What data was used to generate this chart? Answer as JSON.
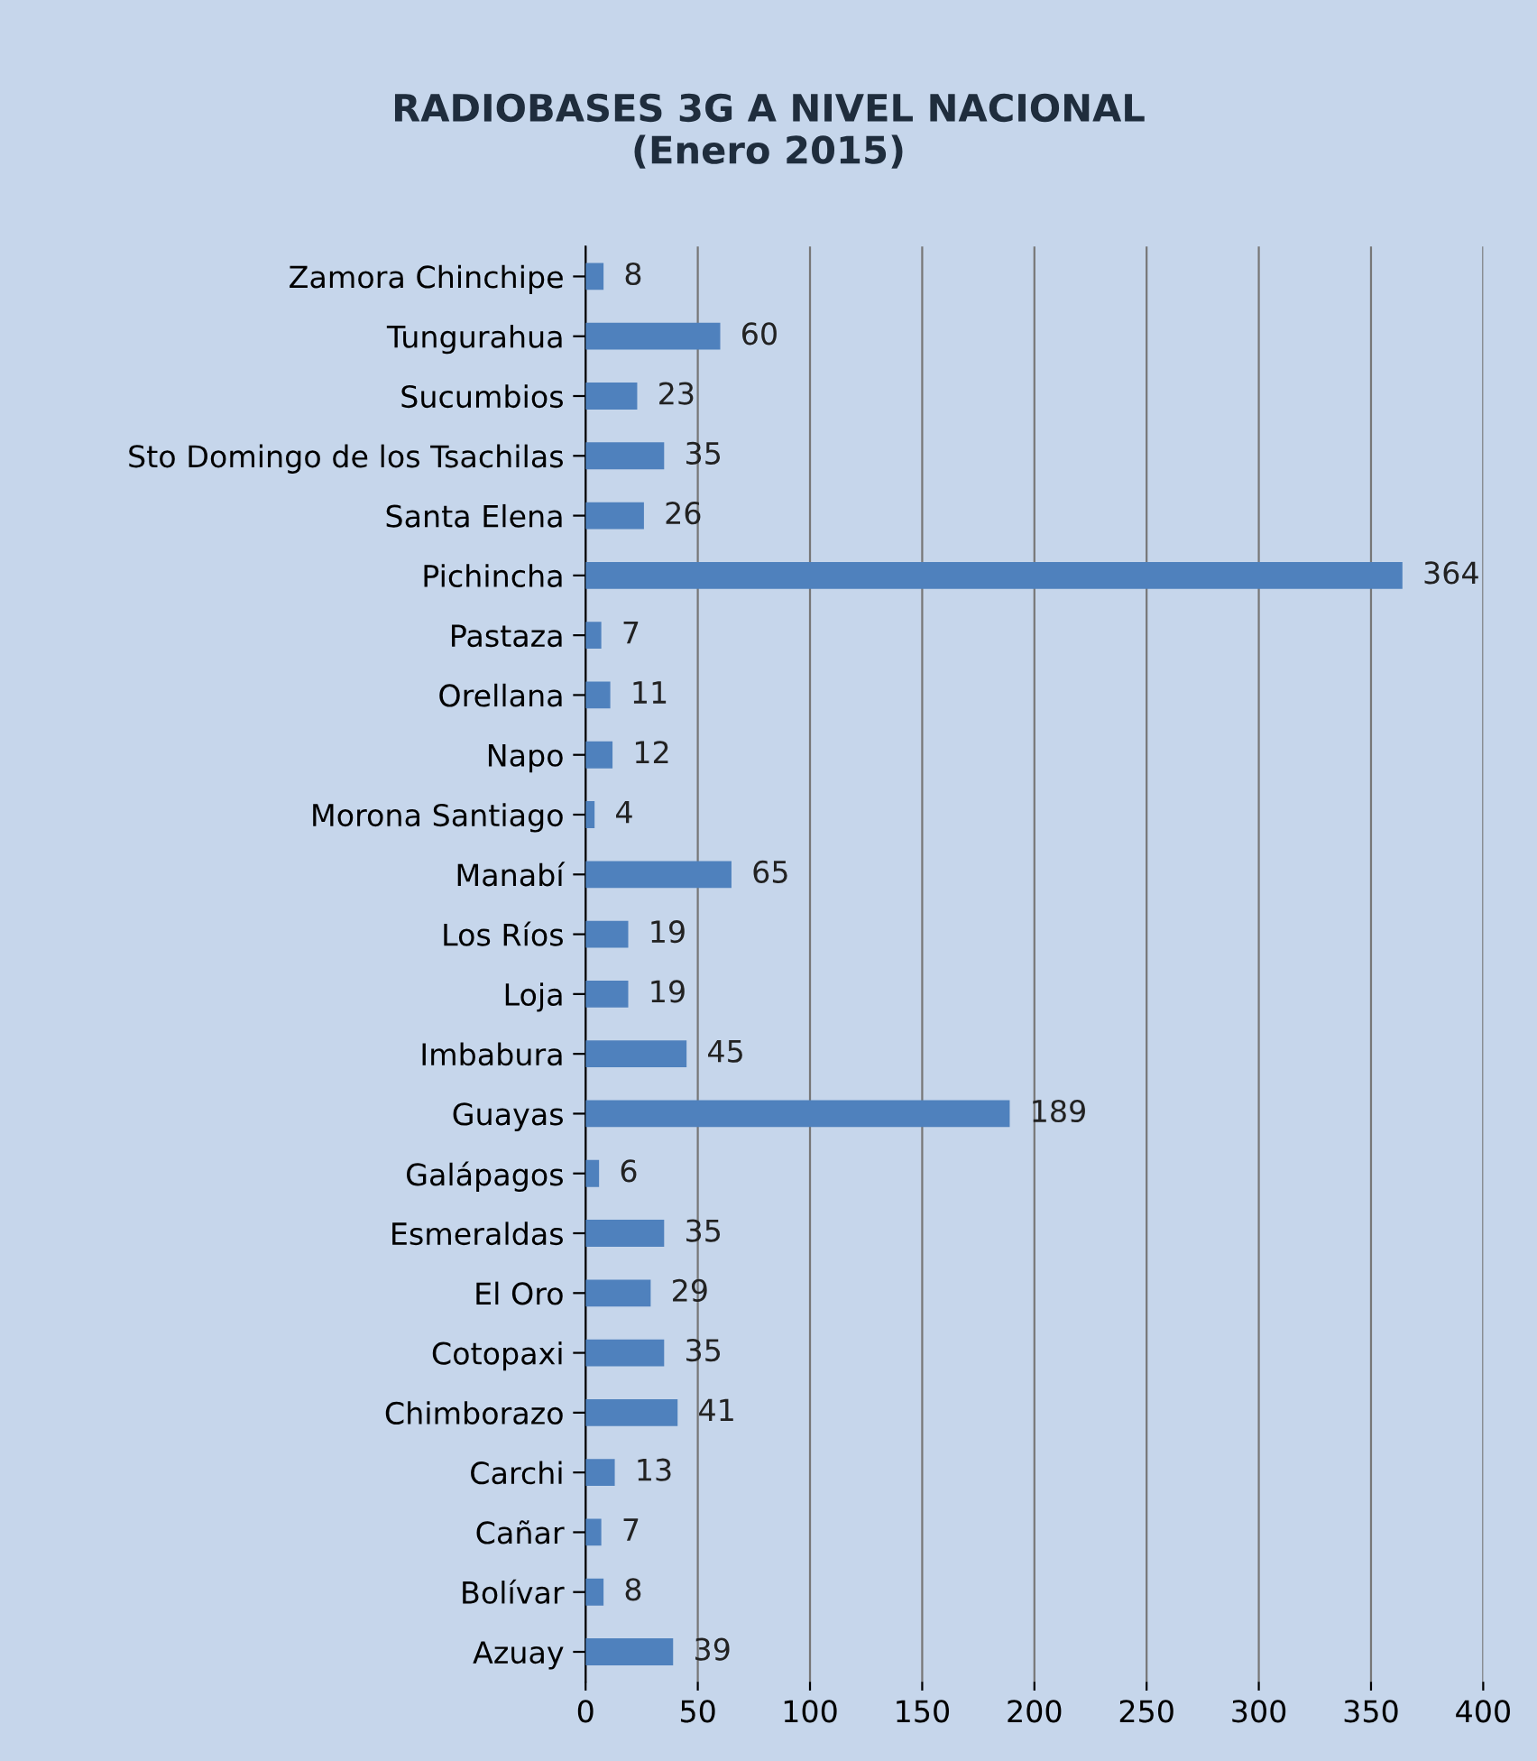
{
  "chart_data": {
    "type": "bar",
    "orientation": "horizontal",
    "title": "RADIOBASES 3G A NIVEL NACIONAL\n(Enero 2015)",
    "categories": [
      "Zamora Chinchipe",
      "Tungurahua",
      "Sucumbios",
      "Sto Domingo de los Tsachilas",
      "Santa Elena",
      "Pichincha",
      "Pastaza",
      "Orellana",
      "Napo",
      "Morona Santiago",
      "Manabí",
      "Los Ríos",
      "Loja",
      "Imbabura",
      "Guayas",
      "Galápagos",
      "Esmeraldas",
      "El Oro",
      "Cotopaxi",
      "Chimborazo",
      "Carchi",
      "Cañar",
      "Bolívar",
      "Azuay"
    ],
    "values": [
      8,
      60,
      23,
      35,
      26,
      364,
      7,
      11,
      12,
      4,
      65,
      19,
      19,
      45,
      189,
      6,
      35,
      29,
      35,
      41,
      13,
      7,
      8,
      39
    ],
    "color": "#4f81bd",
    "xlim": [
      0,
      400
    ],
    "xticks": [
      0,
      50,
      100,
      150,
      200,
      250,
      300,
      350,
      400
    ],
    "grid": "x",
    "data_labels": true
  }
}
